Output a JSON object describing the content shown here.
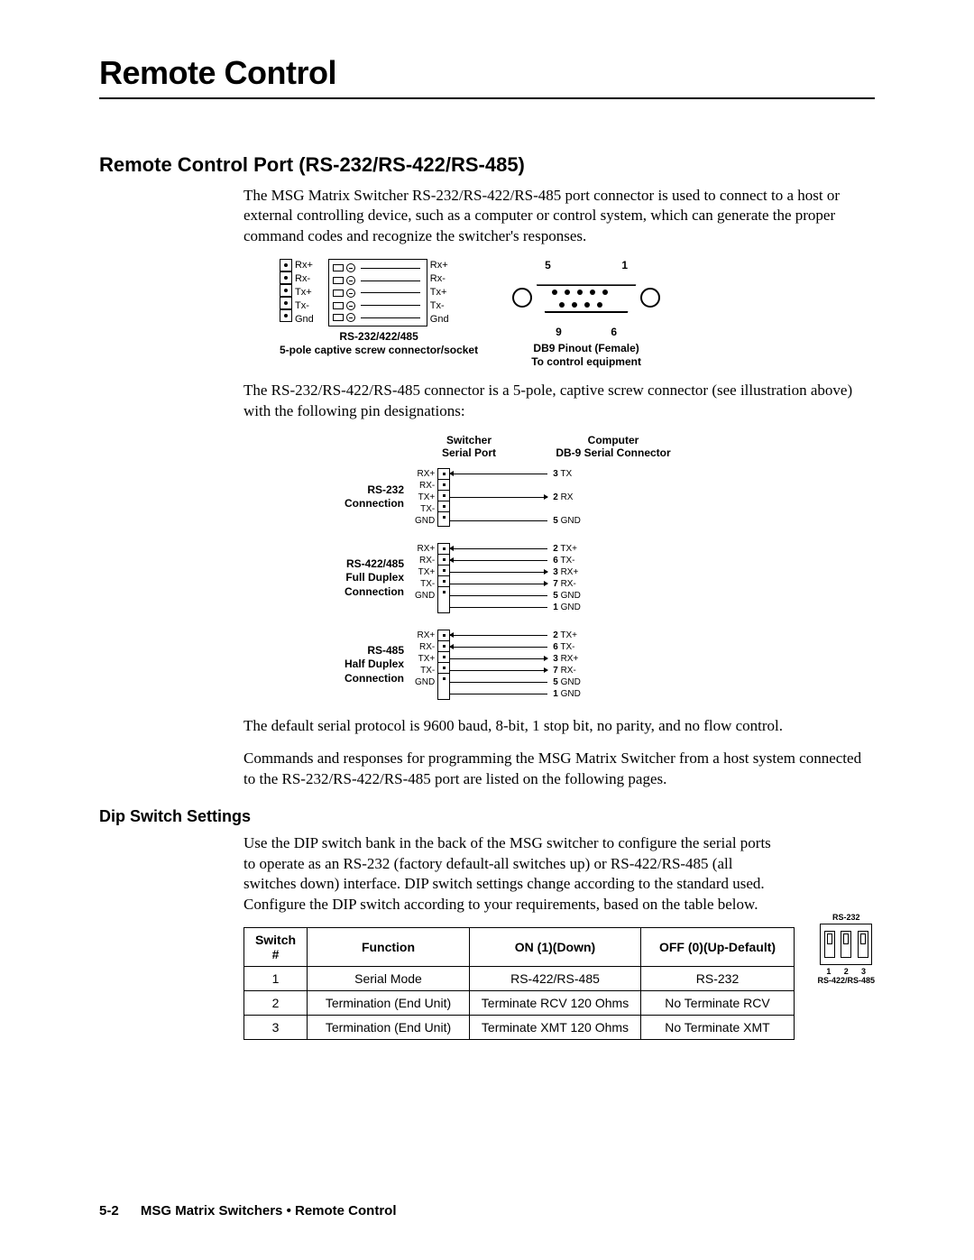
{
  "page_title": "Remote Control",
  "section1": {
    "title": "Remote Control Port (RS-232/RS-422/RS-485)",
    "p1": "The MSG Matrix Switcher RS-232/RS-422/RS-485 port connector is used to connect to a host or external controlling device, such as a computer or control system, which can generate the proper command codes and recognize the switcher's responses.",
    "connector_pins": [
      "Rx+",
      "Rx-",
      "Tx+",
      "Tx-",
      "Gnd"
    ],
    "connector_pins_right": [
      "Rx+",
      "Rx-",
      "Tx+",
      "Tx-",
      "Gnd"
    ],
    "connector_caption_l1": "RS-232/422/485",
    "connector_caption_l2": "5-pole captive screw connector/socket",
    "db9_top_left": "5",
    "db9_top_right": "1",
    "db9_bot_left": "9",
    "db9_bot_right": "6",
    "db9_caption_l1": "DB9 Pinout (Female)",
    "db9_caption_l2": "To control equipment",
    "p2": "The RS-232/RS-422/RS-485 connector is a 5-pole, captive screw connector (see illustration above) with the following pin designations:",
    "pinout_header": {
      "left": "",
      "mid": "Switcher\nSerial Port",
      "right": "Computer\nDB-9 Serial Connector"
    },
    "pinouts": [
      {
        "label": "RS-232\nConnection",
        "left": [
          "RX+",
          "RX-",
          "TX+",
          "TX-",
          "GND"
        ],
        "right": [
          {
            "n": "3",
            "t": "TX",
            "arrow": "l"
          },
          {
            "n": "",
            "t": "",
            "arrow": ""
          },
          {
            "n": "2",
            "t": "RX",
            "arrow": "r"
          },
          {
            "n": "",
            "t": "",
            "arrow": ""
          },
          {
            "n": "5",
            "t": "GND",
            "arrow": ""
          }
        ]
      },
      {
        "label": "RS-422/485\nFull Duplex\nConnection",
        "left": [
          "RX+",
          "RX-",
          "TX+",
          "TX-",
          "GND"
        ],
        "right": [
          {
            "n": "2",
            "t": "TX+",
            "arrow": "l"
          },
          {
            "n": "6",
            "t": "TX-",
            "arrow": "l"
          },
          {
            "n": "3",
            "t": "RX+",
            "arrow": "r"
          },
          {
            "n": "7",
            "t": "RX-",
            "arrow": "r"
          },
          {
            "n": "5",
            "t": "GND",
            "arrow": ""
          },
          {
            "n": "1",
            "t": "GND",
            "arrow": ""
          }
        ]
      },
      {
        "label": "RS-485\nHalf Duplex\nConnection",
        "left": [
          "RX+",
          "RX-",
          "TX+",
          "TX-",
          "GND"
        ],
        "right": [
          {
            "n": "2",
            "t": "TX+",
            "arrow": "l"
          },
          {
            "n": "6",
            "t": "TX-",
            "arrow": "l"
          },
          {
            "n": "3",
            "t": "RX+",
            "arrow": "r"
          },
          {
            "n": "7",
            "t": "RX-",
            "arrow": "r"
          },
          {
            "n": "5",
            "t": "GND",
            "arrow": ""
          },
          {
            "n": "1",
            "t": "GND",
            "arrow": ""
          }
        ]
      }
    ],
    "p3": "The default serial protocol is 9600 baud, 8-bit, 1 stop bit, no parity, and no flow control.",
    "p4": "Commands and responses for programming the MSG Matrix Switcher from a host system connected to the RS-232/RS-422/RS-485 port are listed on the following pages."
  },
  "section2": {
    "title": "Dip Switch Settings",
    "p1": "Use the DIP switch bank in the back of the MSG switcher to configure the serial ports to operate as an RS-232 (factory default-all switches up) or RS-422/RS-485 (all switches down) interface.  DIP switch settings change according to the standard used. Configure the DIP switch according to your requirements, based on the table below.",
    "dip_top": "RS-232",
    "dip_nums": [
      "1",
      "2",
      "3"
    ],
    "dip_bot": "RS-422/RS-485"
  },
  "table": {
    "headers": [
      "Switch #",
      "Function",
      "ON (1)(Down)",
      "OFF (0)(Up-Default)"
    ],
    "rows": [
      [
        "1",
        "Serial Mode",
        "RS-422/RS-485",
        "RS-232"
      ],
      [
        "2",
        "Termination (End Unit)",
        "Terminate RCV 120 Ohms",
        "No Terminate RCV"
      ],
      [
        "3",
        "Termination (End Unit)",
        "Terminate XMT 120 Ohms",
        "No Terminate XMT"
      ]
    ],
    "col_widths": [
      "70px",
      "180px",
      "190px",
      "170px"
    ]
  },
  "footer": {
    "page": "5-2",
    "text": "MSG Matrix Switchers • Remote Control"
  },
  "colors": {
    "text": "#000000",
    "bg": "#ffffff",
    "rule": "#000000"
  }
}
